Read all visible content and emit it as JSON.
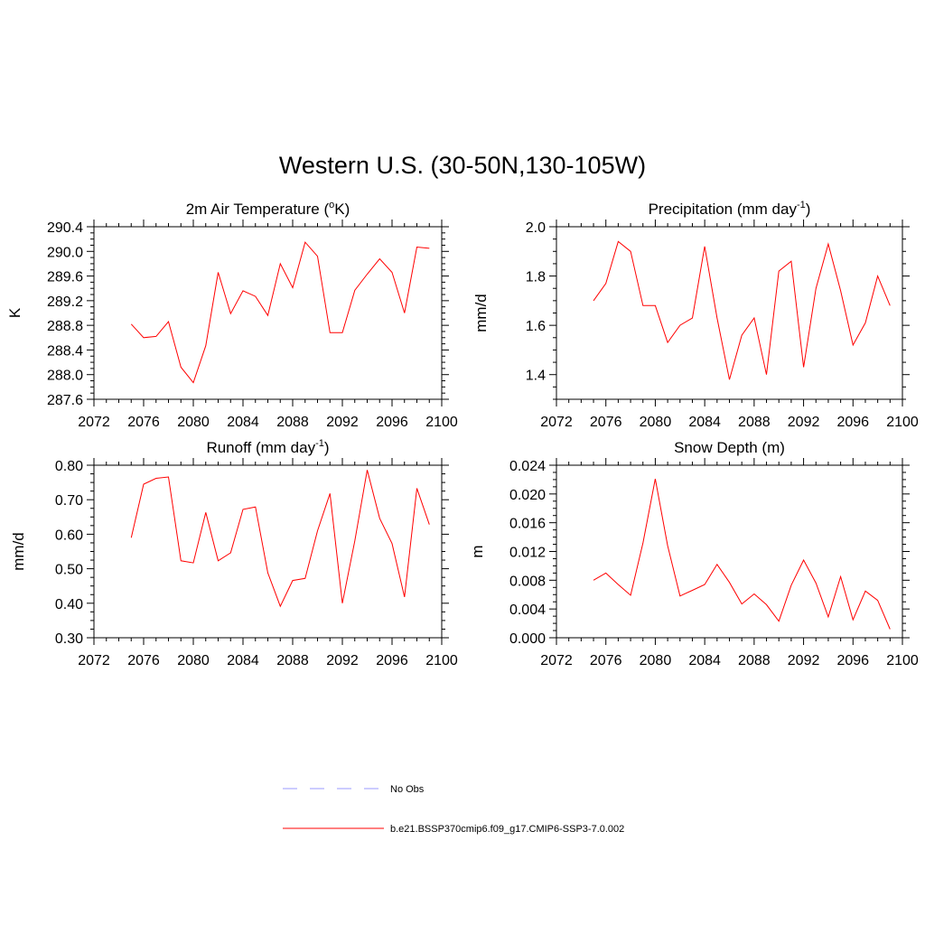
{
  "figure": {
    "title": "Western U.S. (30-50N,130-105W)"
  },
  "colors": {
    "model_line": "#ff0000",
    "obs_line": "#9999ff"
  },
  "legend": [
    {
      "label": "No Obs",
      "style": "dashed",
      "color": "#9999ff"
    },
    {
      "label": "b.e21.BSSP370cmip6.f09_g17.CMIP6-SSP3-7.0.002",
      "style": "solid",
      "color": "#ff0000"
    }
  ],
  "chart_data": [
    {
      "type": "line",
      "title": "2m Air Temperature (",
      "title_sup": "o",
      "title_after": "K)",
      "ylabel": "K",
      "xlabel": "",
      "xlim": [
        2072,
        2100
      ],
      "ylim": [
        287.6,
        290.4
      ],
      "xticks": [
        2072,
        2076,
        2080,
        2084,
        2088,
        2092,
        2096,
        2100
      ],
      "yticks": [
        "287.6",
        "288.0",
        "288.4",
        "288.8",
        "289.2",
        "289.6",
        "290.0",
        "290.4"
      ],
      "x": [
        2075,
        2076,
        2077,
        2078,
        2079,
        2080,
        2081,
        2082,
        2083,
        2084,
        2085,
        2086,
        2087,
        2088,
        2089,
        2090,
        2091,
        2092,
        2093,
        2094,
        2095,
        2096,
        2097,
        2098,
        2099
      ],
      "series": [
        {
          "values": [
            288.82,
            288.6,
            288.62,
            288.86,
            288.12,
            287.87,
            288.47,
            289.66,
            288.99,
            289.36,
            289.27,
            288.96,
            289.8,
            289.41,
            290.15,
            289.92,
            288.68,
            288.68,
            289.37,
            289.63,
            289.88,
            289.66,
            289.0,
            290.07,
            290.05
          ]
        }
      ]
    },
    {
      "type": "line",
      "title": "Precipitation (mm day",
      "title_sup": "-1",
      "title_after": ")",
      "ylabel": "mm/d",
      "xlabel": "",
      "xlim": [
        2072,
        2100
      ],
      "ylim": [
        1.3,
        2.0
      ],
      "xticks": [
        2072,
        2076,
        2080,
        2084,
        2088,
        2092,
        2096,
        2100
      ],
      "yticks": [
        "1.4",
        "1.6",
        "1.8",
        "2.0"
      ],
      "x": [
        2075,
        2076,
        2077,
        2078,
        2079,
        2080,
        2081,
        2082,
        2083,
        2084,
        2085,
        2086,
        2087,
        2088,
        2089,
        2090,
        2091,
        2092,
        2093,
        2094,
        2095,
        2096,
        2097,
        2098,
        2099
      ],
      "series": [
        {
          "values": [
            1.7,
            1.77,
            1.94,
            1.9,
            1.68,
            1.68,
            1.53,
            1.6,
            1.63,
            1.92,
            1.63,
            1.38,
            1.56,
            1.63,
            1.4,
            1.82,
            1.86,
            1.43,
            1.75,
            1.93,
            1.74,
            1.52,
            1.61,
            1.8,
            1.68
          ]
        }
      ]
    },
    {
      "type": "line",
      "title": "Runoff (mm day",
      "title_sup": "-1",
      "title_after": ")",
      "ylabel": "mm/d",
      "xlabel": "",
      "xlim": [
        2072,
        2100
      ],
      "ylim": [
        0.3,
        0.8
      ],
      "xticks": [
        2072,
        2076,
        2080,
        2084,
        2088,
        2092,
        2096,
        2100
      ],
      "yticks": [
        "0.30",
        "0.40",
        "0.50",
        "0.60",
        "0.70",
        "0.80"
      ],
      "x": [
        2075,
        2076,
        2077,
        2078,
        2079,
        2080,
        2081,
        2082,
        2083,
        2084,
        2085,
        2086,
        2087,
        2088,
        2089,
        2090,
        2091,
        2092,
        2093,
        2094,
        2095,
        2096,
        2097,
        2098,
        2099
      ],
      "series": [
        {
          "values": [
            0.59,
            0.745,
            0.762,
            0.766,
            0.523,
            0.517,
            0.663,
            0.523,
            0.546,
            0.672,
            0.679,
            0.488,
            0.391,
            0.466,
            0.472,
            0.61,
            0.718,
            0.4,
            0.581,
            0.786,
            0.646,
            0.573,
            0.418,
            0.733,
            0.628
          ]
        }
      ]
    },
    {
      "type": "line",
      "title": "Snow Depth (m)",
      "title_sup": "",
      "title_after": "",
      "ylabel": "m",
      "xlabel": "",
      "xlim": [
        2072,
        2100
      ],
      "ylim": [
        0.0,
        0.024
      ],
      "xticks": [
        2072,
        2076,
        2080,
        2084,
        2088,
        2092,
        2096,
        2100
      ],
      "yticks": [
        "0.000",
        "0.004",
        "0.008",
        "0.012",
        "0.016",
        "0.020",
        "0.024"
      ],
      "x": [
        2075,
        2076,
        2077,
        2078,
        2079,
        2080,
        2081,
        2082,
        2083,
        2084,
        2085,
        2086,
        2087,
        2088,
        2089,
        2090,
        2091,
        2092,
        2093,
        2094,
        2095,
        2096,
        2097,
        2098,
        2099
      ],
      "series": [
        {
          "values": [
            0.008,
            0.009,
            0.0074,
            0.0059,
            0.0132,
            0.0221,
            0.0128,
            0.0058,
            0.0066,
            0.0074,
            0.0102,
            0.0077,
            0.0047,
            0.0061,
            0.0046,
            0.0023,
            0.0073,
            0.0108,
            0.0076,
            0.0029,
            0.0085,
            0.0025,
            0.0065,
            0.0052,
            0.0012
          ]
        }
      ]
    }
  ]
}
